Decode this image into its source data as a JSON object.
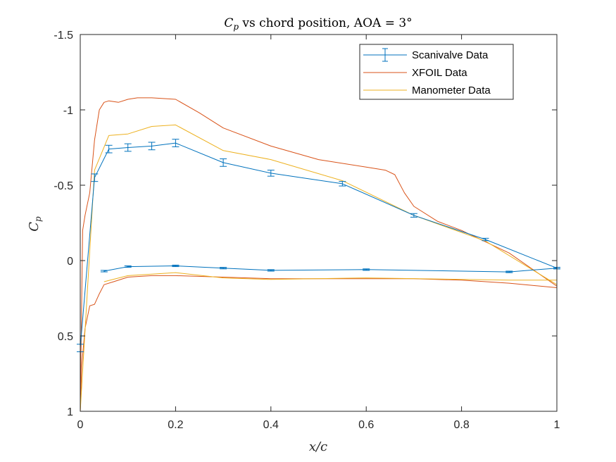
{
  "chart_data": {
    "type": "line",
    "title": "Cp vs chord position, AOA = 3°",
    "title_parts": {
      "main": "C",
      "sub": "p",
      "rest": " vs chord position, AOA = 3°"
    },
    "xlabel": "x/c",
    "ylabel": "C",
    "ylabel_sub": "p",
    "xlim": [
      0,
      1
    ],
    "ylim": [
      -1.5,
      1
    ],
    "y_reversed": true,
    "xticks": [
      0,
      0.2,
      0.4,
      0.6,
      0.8,
      1
    ],
    "xtick_labels": [
      "0",
      "0.2",
      "0.4",
      "0.6",
      "0.8",
      "1"
    ],
    "yticks": [
      -1.5,
      -1,
      -0.5,
      0,
      0.5,
      1
    ],
    "ytick_labels": [
      "-1.5",
      "-1",
      "-0.5",
      "0",
      "0.5",
      "1"
    ],
    "grid": false,
    "legend_position": "top-right",
    "legend": [
      "Scanivalve Data",
      "XFOIL Data",
      "Manometer Data"
    ],
    "series": [
      {
        "name": "Scanivalve Data",
        "color": "#0072BD",
        "error_bars": true,
        "segments": [
          {
            "x": [
              0,
              0.03,
              0.06,
              0.1,
              0.15,
              0.2,
              0.3,
              0.4,
              0.55,
              0.7,
              0.85,
              1.0
            ],
            "y": [
              0.58,
              -0.55,
              -0.74,
              -0.75,
              -0.76,
              -0.78,
              -0.65,
              -0.58,
              -0.51,
              -0.3,
              -0.14,
              0.05
            ],
            "err": [
              0.025,
              0.025,
              0.025,
              0.025,
              0.025,
              0.025,
              0.025,
              0.02,
              0.015,
              0.012,
              0.008,
              0.005
            ]
          },
          {
            "x": [
              0.05,
              0.1,
              0.2,
              0.3,
              0.4,
              0.6,
              0.9,
              1.0
            ],
            "y": [
              0.07,
              0.04,
              0.035,
              0.05,
              0.065,
              0.06,
              0.075,
              0.05
            ],
            "err": [
              0.005,
              0.005,
              0.005,
              0.005,
              0.005,
              0.005,
              0.005,
              0.005
            ]
          }
        ]
      },
      {
        "name": "XFOIL Data",
        "color": "#D95319",
        "segments": [
          {
            "x": [
              0,
              0.002,
              0.005,
              0.01,
              0.02,
              0.03,
              0.04,
              0.05,
              0.06,
              0.08,
              0.1,
              0.12,
              0.15,
              0.2,
              0.25,
              0.3,
              0.4,
              0.5,
              0.6,
              0.64,
              0.66,
              0.68,
              0.7,
              0.75,
              0.8,
              0.9,
              1.0
            ],
            "y": [
              1.0,
              0.5,
              -0.2,
              -0.3,
              -0.45,
              -0.8,
              -1.0,
              -1.05,
              -1.06,
              -1.05,
              -1.07,
              -1.08,
              -1.08,
              -1.07,
              -0.98,
              -0.88,
              -0.76,
              -0.67,
              -0.62,
              -0.6,
              -0.57,
              -0.45,
              -0.36,
              -0.26,
              -0.2,
              -0.05,
              0.17
            ]
          },
          {
            "x": [
              0,
              0.003,
              0.01,
              0.02,
              0.03,
              0.04,
              0.05,
              0.07,
              0.1,
              0.15,
              0.2,
              0.3,
              0.4,
              0.5,
              0.6,
              0.7,
              0.8,
              0.9,
              1.0
            ],
            "y": [
              1.0,
              0.7,
              0.45,
              0.3,
              0.29,
              0.22,
              0.16,
              0.14,
              0.11,
              0.1,
              0.1,
              0.11,
              0.12,
              0.12,
              0.12,
              0.12,
              0.13,
              0.15,
              0.18
            ]
          }
        ]
      },
      {
        "name": "Manometer Data",
        "color": "#EDB120",
        "segments": [
          {
            "x": [
              0,
              0.03,
              0.06,
              0.1,
              0.15,
              0.2,
              0.3,
              0.4,
              0.55,
              0.7,
              0.85,
              1.0
            ],
            "y": [
              1.0,
              -0.6,
              -0.83,
              -0.84,
              -0.89,
              -0.9,
              -0.73,
              -0.67,
              -0.53,
              -0.3,
              -0.13,
              0.16
            ]
          },
          {
            "x": [
              0.05,
              0.1,
              0.2,
              0.3,
              0.4,
              0.6,
              0.9,
              1.0
            ],
            "y": [
              0.14,
              0.1,
              0.08,
              0.115,
              0.125,
              0.115,
              0.13,
              0.13
            ]
          }
        ]
      }
    ]
  }
}
